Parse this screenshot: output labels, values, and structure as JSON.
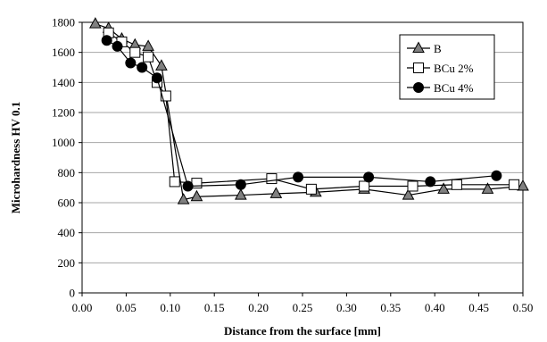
{
  "chart_data": {
    "type": "line",
    "xlabel": "Distance from the surface [mm]",
    "ylabel": "Microhardness  HV 0.1",
    "xlim": [
      0,
      0.5
    ],
    "ylim": [
      0,
      1800
    ],
    "x_ticks": [
      "0.00",
      "0.05",
      "0.10",
      "0.15",
      "0.20",
      "0.25",
      "0.30",
      "0.35",
      "0.40",
      "0.45",
      "0.50"
    ],
    "y_ticks": [
      "0",
      "200",
      "400",
      "600",
      "800",
      "1000",
      "1200",
      "1400",
      "1600",
      "1800"
    ],
    "grid": "horizontal",
    "legend_position": "top-right",
    "series": [
      {
        "name": "B",
        "marker": "triangle",
        "color": "#808080",
        "x": [
          0.015,
          0.03,
          0.045,
          0.06,
          0.075,
          0.09,
          0.115,
          0.13,
          0.18,
          0.22,
          0.265,
          0.32,
          0.37,
          0.41,
          0.46,
          0.5
        ],
        "y": [
          1790,
          1760,
          1690,
          1650,
          1640,
          1510,
          620,
          640,
          650,
          660,
          670,
          690,
          650,
          690,
          690,
          710
        ]
      },
      {
        "name": "BCu 2%",
        "marker": "square",
        "color": "#ffffff",
        "x": [
          0.03,
          0.045,
          0.06,
          0.075,
          0.085,
          0.095,
          0.105,
          0.13,
          0.215,
          0.26,
          0.32,
          0.375,
          0.425,
          0.49
        ],
        "y": [
          1730,
          1670,
          1600,
          1570,
          1400,
          1310,
          740,
          730,
          760,
          690,
          710,
          710,
          720,
          720
        ]
      },
      {
        "name": "BCu 4%",
        "marker": "circle",
        "color": "#000000",
        "x": [
          0.028,
          0.04,
          0.055,
          0.068,
          0.085,
          0.12,
          0.18,
          0.245,
          0.325,
          0.395,
          0.47
        ],
        "y": [
          1680,
          1640,
          1530,
          1500,
          1430,
          710,
          720,
          770,
          770,
          740,
          780
        ]
      }
    ]
  }
}
